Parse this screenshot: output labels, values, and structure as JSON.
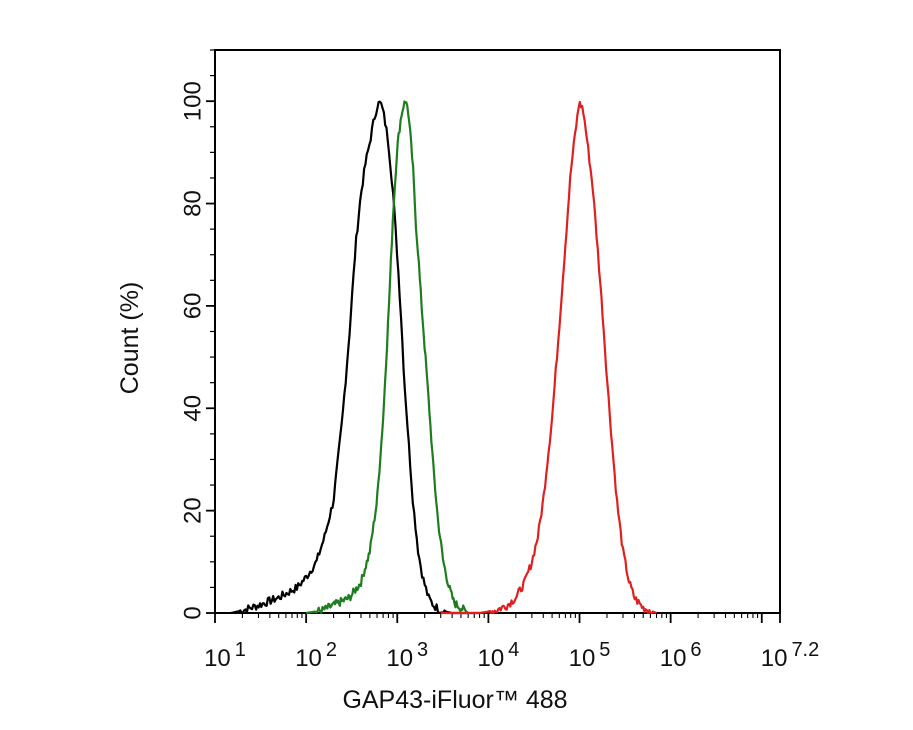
{
  "chart_data": {
    "type": "line",
    "title": "",
    "xlabel": "GAP43-iFluor™ 488",
    "ylabel": "Count  (%)",
    "x_scale": "log",
    "xlim": [
      10,
      15848932
    ],
    "ylim": [
      0,
      110
    ],
    "y_ticks": [
      "0",
      "20",
      "40",
      "60",
      "80",
      "100"
    ],
    "x_ticks": [
      {
        "base": "10",
        "exp": "1",
        "value": 10
      },
      {
        "base": "10",
        "exp": "2",
        "value": 100
      },
      {
        "base": "10",
        "exp": "3",
        "value": 1000
      },
      {
        "base": "10",
        "exp": "4",
        "value": 10000
      },
      {
        "base": "10",
        "exp": "5",
        "value": 100000
      },
      {
        "base": "10",
        "exp": "6",
        "value": 1000000
      },
      {
        "base": "10",
        "exp": "7.2",
        "value": 15848932
      }
    ],
    "grid": false,
    "series": [
      {
        "color": "#000000",
        "x": [
          15,
          20,
          30,
          50,
          80,
          100,
          130,
          160,
          200,
          250,
          300,
          350,
          400,
          450,
          500,
          550,
          600,
          650,
          700,
          750,
          800,
          900,
          1000,
          1100,
          1200,
          1350,
          1500,
          1700,
          1900,
          2200,
          2500,
          3000,
          4000,
          6000
        ],
        "y": [
          0,
          0.5,
          1.5,
          3,
          5,
          7,
          10,
          15,
          22,
          38,
          55,
          72,
          82,
          88,
          92,
          96,
          99,
          100,
          98,
          95,
          92,
          82,
          70,
          58,
          45,
          32,
          21,
          12,
          7,
          3,
          1.5,
          0.5,
          0,
          0
        ]
      },
      {
        "color": "#1e7d1e",
        "x": [
          100,
          150,
          200,
          300,
          400,
          500,
          600,
          700,
          800,
          900,
          1000,
          1100,
          1200,
          1300,
          1400,
          1500,
          1600,
          1700,
          1800,
          2000,
          2200,
          2500,
          2800,
          3200,
          3700,
          4200,
          5000,
          6000,
          8000
        ],
        "y": [
          0,
          0.5,
          1.5,
          3,
          6,
          12,
          22,
          38,
          58,
          78,
          91,
          97,
          100,
          99,
          93,
          86,
          76,
          70,
          63,
          52,
          42,
          28,
          18,
          10,
          5,
          2,
          1,
          0,
          0
        ]
      },
      {
        "color": "#e0201e",
        "x": [
          3000,
          8000,
          12000,
          16000,
          20000,
          25000,
          30000,
          35000,
          40000,
          50000,
          60000,
          70000,
          80000,
          90000,
          100000,
          110000,
          120000,
          140000,
          160000,
          180000,
          200000,
          230000,
          260000,
          300000,
          350000,
          400000,
          500000,
          700000
        ],
        "y": [
          0,
          0,
          0.5,
          1.5,
          3,
          6,
          10,
          15,
          22,
          38,
          56,
          72,
          86,
          94,
          100,
          98,
          93,
          83,
          70,
          58,
          46,
          32,
          21,
          12,
          6,
          3,
          1,
          0
        ]
      }
    ]
  }
}
